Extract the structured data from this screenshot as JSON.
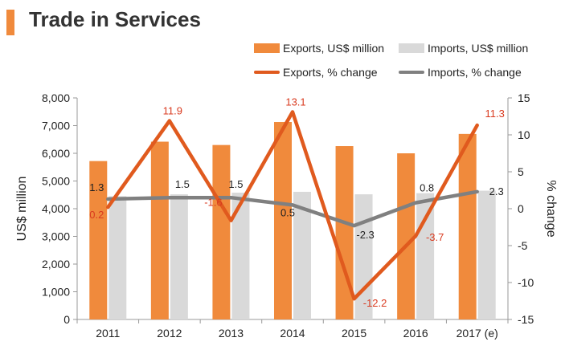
{
  "title": "Trade in Services",
  "colors": {
    "accent": "#f08a3c",
    "exports_bar": "#f08a3c",
    "imports_bar": "#d9d9d9",
    "exports_line": "#e05a1e",
    "imports_line": "#808080",
    "exports_label": "#d93a1f",
    "imports_label": "#222222"
  },
  "legend": {
    "exports_bar": "Exports, US$ million",
    "imports_bar": "Imports, US$ million",
    "exports_line": "Exports, % change",
    "imports_line": "Imports, % change"
  },
  "chart_data": {
    "type": "bar",
    "categories": [
      "2011",
      "2012",
      "2013",
      "2014",
      "2015",
      "2016",
      "2017 (e)"
    ],
    "ylabel": "US$ million",
    "y2label": "% change",
    "ylim": [
      0,
      8000
    ],
    "y2lim": [
      -15,
      15
    ],
    "yticks": [
      "0",
      "1,000",
      "2,000",
      "3,000",
      "4,000",
      "5,000",
      "6,000",
      "7,000",
      "8,000"
    ],
    "y2ticks": [
      "-15",
      "-10",
      "-5",
      "0",
      "5",
      "10",
      "15"
    ],
    "bar_series": [
      {
        "name": "Exports, US$ million",
        "values": [
          5720,
          6420,
          6300,
          7130,
          6260,
          6000,
          6700
        ]
      },
      {
        "name": "Imports, US$ million",
        "values": [
          4450,
          4520,
          4580,
          4610,
          4520,
          4560,
          4650
        ]
      }
    ],
    "line_series": [
      {
        "name": "Exports, % change",
        "values": [
          0.2,
          11.9,
          -1.6,
          13.1,
          -12.2,
          -3.7,
          11.3
        ],
        "labels": [
          "0.2",
          "11.9",
          "-1.6",
          "13.1",
          "-12.2",
          "-3.7",
          "11.3"
        ]
      },
      {
        "name": "Imports, % change",
        "values": [
          1.3,
          1.5,
          1.5,
          0.5,
          -2.3,
          0.8,
          2.3
        ],
        "labels": [
          "1.3",
          "1.5",
          "1.5",
          "0.5",
          "-2.3",
          "0.8",
          "2.3"
        ]
      }
    ],
    "grid": false,
    "legend_position": "top"
  }
}
